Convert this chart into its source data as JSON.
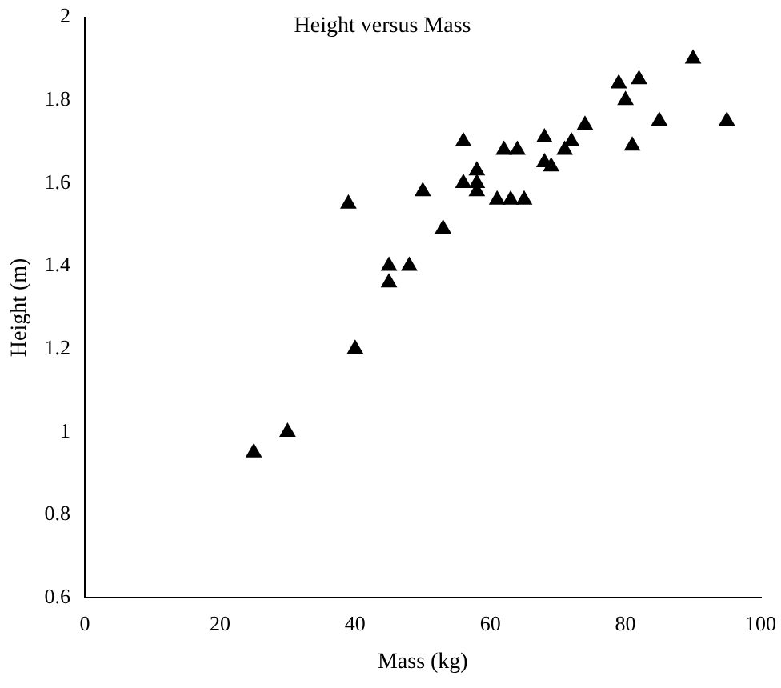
{
  "chart_data": {
    "type": "scatter",
    "title": "Height versus Mass",
    "xlabel": "Mass (kg)",
    "ylabel": "Height (m)",
    "x": [
      25,
      30,
      39,
      40,
      45,
      45,
      48,
      50,
      53,
      56,
      56,
      58,
      58,
      58,
      61,
      62,
      63,
      64,
      65,
      68,
      68,
      69,
      71,
      72,
      74,
      79,
      80,
      81,
      82,
      85,
      90,
      95
    ],
    "series": [
      {
        "color": "#000000",
        "values": [
          0.95,
          1.0,
          1.55,
          1.2,
          1.4,
          1.36,
          1.4,
          1.58,
          1.49,
          1.7,
          1.6,
          1.63,
          1.6,
          1.58,
          1.56,
          1.68,
          1.56,
          1.68,
          1.56,
          1.71,
          1.65,
          1.64,
          1.68,
          1.7,
          1.74,
          1.84,
          1.8,
          1.69,
          1.85,
          1.75,
          1.9,
          1.75
        ]
      }
    ],
    "xlim": [
      0,
      100
    ],
    "xticks": [
      0,
      20,
      40,
      60,
      80,
      100
    ],
    "ylim": [
      0.6,
      2
    ],
    "yticks": [
      0.6,
      0.8,
      1,
      1.2,
      1.4,
      1.6,
      1.8,
      2
    ],
    "marker": "triangle",
    "grid": false,
    "legend": false
  }
}
